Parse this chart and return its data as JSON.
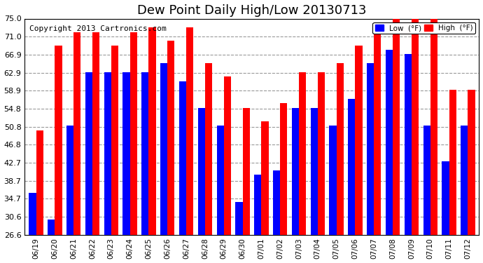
{
  "title": "Dew Point Daily High/Low 20130713",
  "copyright": "Copyright 2013 Cartronics.com",
  "dates": [
    "06/19",
    "06/20",
    "06/21",
    "06/22",
    "06/23",
    "06/24",
    "06/25",
    "06/26",
    "06/27",
    "06/28",
    "06/29",
    "06/30",
    "07/01",
    "07/02",
    "07/03",
    "07/04",
    "07/05",
    "07/06",
    "07/07",
    "07/08",
    "07/09",
    "07/10",
    "07/11",
    "07/12"
  ],
  "low_values": [
    36.0,
    30.0,
    51.0,
    63.0,
    63.0,
    63.0,
    63.0,
    65.0,
    61.0,
    55.0,
    51.0,
    34.0,
    40.0,
    41.0,
    55.0,
    55.0,
    51.0,
    57.0,
    65.0,
    68.0,
    67.0,
    51.0,
    43.0,
    51.0
  ],
  "high_values": [
    50.0,
    69.0,
    72.0,
    72.0,
    69.0,
    72.0,
    73.0,
    70.0,
    73.0,
    65.0,
    62.0,
    55.0,
    52.0,
    56.0,
    63.0,
    63.0,
    65.0,
    69.0,
    72.0,
    75.0,
    75.0,
    75.0,
    59.0,
    59.0
  ],
  "low_color": "#0000ff",
  "high_color": "#ff0000",
  "bg_color": "#ffffff",
  "plot_bg_color": "#ffffff",
  "grid_color": "#999999",
  "yticks": [
    26.6,
    30.6,
    34.7,
    38.7,
    42.7,
    46.8,
    50.8,
    54.8,
    58.9,
    62.9,
    66.9,
    71.0,
    75.0
  ],
  "ylim_min": 26.6,
  "ylim_max": 75.0,
  "title_fontsize": 13,
  "copyright_fontsize": 8
}
